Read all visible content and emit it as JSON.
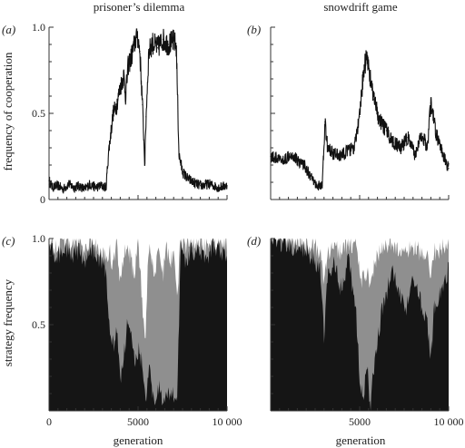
{
  "chart_data": [
    {
      "id": "a",
      "panel_tag": "(a)",
      "title": "prisoner’s dilemma",
      "type": "line",
      "ylabel": "frequency of cooperation",
      "xlabel": "",
      "xlim": [
        0,
        10000
      ],
      "ylim": [
        0,
        1
      ],
      "yticks": [
        "0",
        "0.5",
        "1.0"
      ],
      "xticks": [],
      "grid": false,
      "series": [
        {
          "values": [
            [
              0,
              0.11
            ],
            [
              200,
              0.07
            ],
            [
              500,
              0.08
            ],
            [
              800,
              0.06
            ],
            [
              1100,
              0.09
            ],
            [
              1400,
              0.07
            ],
            [
              1700,
              0.08
            ],
            [
              2000,
              0.06
            ],
            [
              2300,
              0.09
            ],
            [
              2600,
              0.07
            ],
            [
              2900,
              0.08
            ],
            [
              3200,
              0.07
            ],
            [
              3350,
              0.28
            ],
            [
              3600,
              0.5
            ],
            [
              3800,
              0.55
            ],
            [
              4000,
              0.65
            ],
            [
              4200,
              0.72
            ],
            [
              4300,
              0.6
            ],
            [
              4450,
              0.78
            ],
            [
              4600,
              0.82
            ],
            [
              4800,
              0.9
            ],
            [
              4950,
              0.97
            ],
            [
              5100,
              0.86
            ],
            [
              5250,
              0.55
            ],
            [
              5380,
              0.2
            ],
            [
              5450,
              0.48
            ],
            [
              5600,
              0.85
            ],
            [
              5800,
              0.91
            ],
            [
              6100,
              0.88
            ],
            [
              6400,
              0.93
            ],
            [
              6700,
              0.9
            ],
            [
              7000,
              0.92
            ],
            [
              7150,
              0.89
            ],
            [
              7300,
              0.26
            ],
            [
              7500,
              0.16
            ],
            [
              7800,
              0.12
            ],
            [
              8100,
              0.1
            ],
            [
              8500,
              0.08
            ],
            [
              9000,
              0.09
            ],
            [
              9500,
              0.07
            ],
            [
              10000,
              0.08
            ]
          ]
        }
      ]
    },
    {
      "id": "b",
      "panel_tag": "(b)",
      "title": "snowdrift game",
      "type": "line",
      "ylabel": "",
      "xlabel": "",
      "xlim": [
        0,
        10000
      ],
      "ylim": [
        0,
        1
      ],
      "yticks": [],
      "xticks": [],
      "grid": false,
      "series": [
        {
          "values": [
            [
              0,
              0.25
            ],
            [
              300,
              0.24
            ],
            [
              700,
              0.22
            ],
            [
              1100,
              0.27
            ],
            [
              1500,
              0.23
            ],
            [
              1900,
              0.2
            ],
            [
              2300,
              0.12
            ],
            [
              2600,
              0.08
            ],
            [
              2900,
              0.08
            ],
            [
              3050,
              0.45
            ],
            [
              3200,
              0.3
            ],
            [
              3500,
              0.27
            ],
            [
              3900,
              0.25
            ],
            [
              4300,
              0.28
            ],
            [
              4700,
              0.3
            ],
            [
              5000,
              0.48
            ],
            [
              5200,
              0.72
            ],
            [
              5400,
              0.85
            ],
            [
              5600,
              0.7
            ],
            [
              5800,
              0.58
            ],
            [
              6100,
              0.46
            ],
            [
              6500,
              0.4
            ],
            [
              6900,
              0.33
            ],
            [
              7300,
              0.3
            ],
            [
              7700,
              0.36
            ],
            [
              8100,
              0.26
            ],
            [
              8500,
              0.38
            ],
            [
              8800,
              0.3
            ],
            [
              9000,
              0.56
            ],
            [
              9300,
              0.38
            ],
            [
              9700,
              0.25
            ],
            [
              10000,
              0.18
            ]
          ]
        }
      ]
    },
    {
      "id": "c",
      "panel_tag": "(c)",
      "title": "",
      "type": "area",
      "ylabel": "strategy frequency",
      "xlabel": "generation",
      "xlim": [
        0,
        10000
      ],
      "ylim": [
        0,
        1
      ],
      "yticks": [
        "0.5",
        "1.0"
      ],
      "xticks": [
        "0",
        "5000",
        "10 000"
      ],
      "grid": false,
      "colors": {
        "dark": "#151515",
        "grey": "#8f8f8f",
        "white": "#ffffff"
      },
      "series": [
        {
          "x": [
            0,
            400,
            800,
            1200,
            1600,
            2000,
            2400,
            2800,
            3200,
            3400,
            3600,
            3800,
            4000,
            4200,
            4400,
            4600,
            4800,
            5000,
            5200,
            5400,
            5600,
            5800,
            6000,
            6200,
            6400,
            6600,
            6800,
            7000,
            7200,
            7400,
            7600,
            8000,
            8400,
            8800,
            9200,
            9600,
            10000
          ],
          "dark_top": [
            0.97,
            0.88,
            0.95,
            0.9,
            0.93,
            0.86,
            0.95,
            0.88,
            0.82,
            0.5,
            0.38,
            0.45,
            0.2,
            0.3,
            0.55,
            0.5,
            0.25,
            0.35,
            0.3,
            0.05,
            0.25,
            0.1,
            0.05,
            0.15,
            0.06,
            0.12,
            0.05,
            0.1,
            0.05,
            0.98,
            0.88,
            0.92,
            0.95,
            0.86,
            0.97,
            0.92,
            0.9
          ],
          "grey_top": [
            0.99,
            0.95,
            0.99,
            0.96,
            0.98,
            0.94,
            0.99,
            0.95,
            0.92,
            0.92,
            0.85,
            0.98,
            0.75,
            0.9,
            0.97,
            0.88,
            0.78,
            0.96,
            0.7,
            0.35,
            0.98,
            0.85,
            0.82,
            0.95,
            0.78,
            0.95,
            0.85,
            0.9,
            0.7,
            0.99,
            0.96,
            0.98,
            0.99,
            0.94,
            0.99,
            0.97,
            0.96
          ]
        }
      ]
    },
    {
      "id": "d",
      "panel_tag": "(d)",
      "title": "",
      "type": "area",
      "ylabel": "",
      "xlabel": "generation",
      "xlim": [
        0,
        10000
      ],
      "ylim": [
        0,
        1
      ],
      "yticks": [],
      "xticks": [
        "5000",
        "10 000"
      ],
      "grid": false,
      "colors": {
        "dark": "#151515",
        "grey": "#8f8f8f",
        "white": "#ffffff"
      },
      "series": [
        {
          "x": [
            0,
            400,
            800,
            1200,
            1600,
            2000,
            2400,
            2800,
            3000,
            3200,
            3600,
            4000,
            4400,
            4800,
            5000,
            5200,
            5400,
            5600,
            5800,
            6000,
            6200,
            6400,
            6800,
            7200,
            7600,
            8000,
            8400,
            8800,
            9000,
            9200,
            9600,
            10000
          ],
          "dark_top": [
            0.98,
            0.96,
            0.99,
            0.95,
            0.97,
            0.92,
            0.9,
            0.8,
            0.45,
            0.78,
            0.85,
            0.7,
            0.9,
            0.55,
            0.2,
            0.05,
            0.3,
            0.02,
            0.25,
            0.4,
            0.55,
            0.65,
            0.8,
            0.7,
            0.6,
            0.75,
            0.65,
            0.5,
            0.3,
            0.6,
            0.7,
            0.82
          ],
          "grey_top": [
            0.99,
            0.98,
            1.0,
            0.98,
            0.99,
            0.97,
            0.96,
            0.92,
            0.75,
            0.9,
            0.95,
            0.92,
            0.98,
            0.95,
            0.8,
            0.75,
            0.82,
            0.7,
            0.85,
            0.9,
            0.92,
            0.94,
            0.96,
            0.93,
            0.9,
            0.95,
            0.92,
            0.88,
            0.8,
            0.92,
            0.95,
            0.97
          ]
        }
      ]
    }
  ]
}
